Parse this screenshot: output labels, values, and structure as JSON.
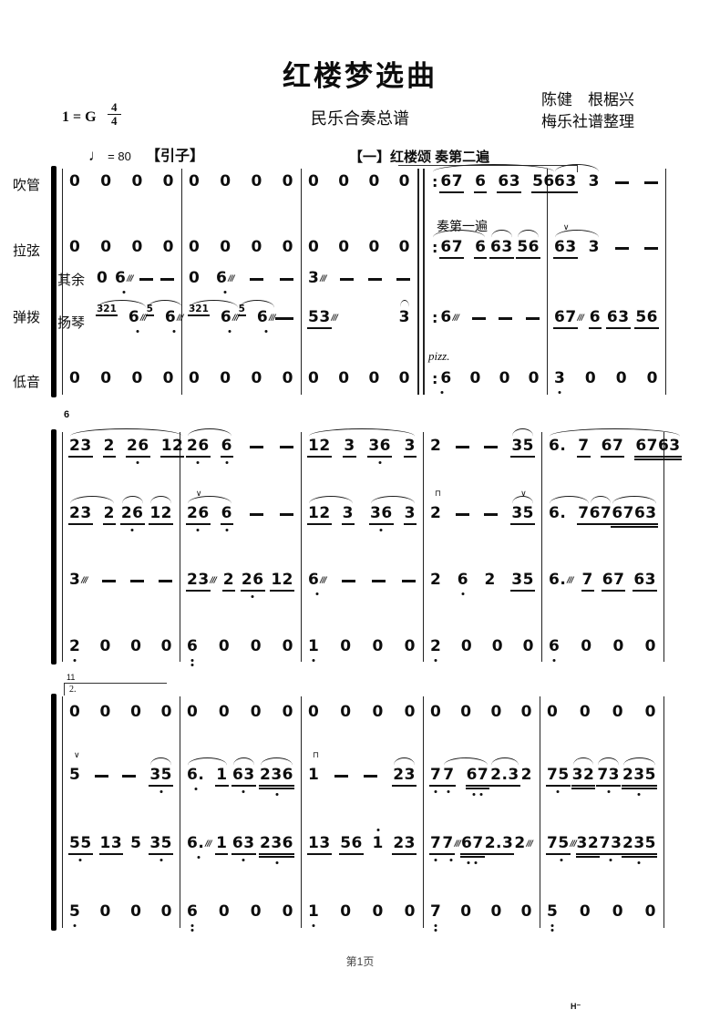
{
  "header": {
    "title": "红楼梦选曲",
    "subtitle": "民乐合奏总谱",
    "composer_line1": "陈健　根椐兴",
    "composer_line2": "梅乐社谱整理",
    "key_signature": "1 = G",
    "time_top": "4",
    "time_bottom": "4",
    "tempo_symbol": "♩",
    "tempo_value": "= 80",
    "intro_label": "【引子】",
    "section_label": "【一】红楼颂 奏第二遍"
  },
  "instruments": [
    "吹管",
    "拉弦",
    "弹拨",
    "低音"
  ],
  "tanbo_sub": [
    "其余",
    "扬琴"
  ],
  "annotations": {
    "first_pass": "奏第一遍",
    "pizz": "pizz.",
    "measure6": "6",
    "measure11": "11",
    "volta2": "2.",
    "page_label": "第1页",
    "corner_mark": "H⁻"
  },
  "systems": [
    {
      "rows": {
        "chuiguan": [
          "0 0 0 0",
          "0 0 0 0",
          "0 0 0 0",
          "(:67_ 6_ 63_ 56_)",
          "(63_ 3) - -"
        ],
        "laxian": [
          "0 0 0 0",
          "0 0 0 0",
          "0 0 0 0",
          "(:67_ 6_) (63_) (56_)",
          "(v^63_ 3) - -"
        ],
        "qiyu": [
          "0 6~, - -",
          "0 6~, - -",
          "3~ - - -",
          "",
          ""
        ],
        "yangqin": [
          "(g:321_ 6~,) (g:5_ 6~,) - -",
          "(g:321_ 6~,) (g:5_ 6~,) - -",
          "53_~ (3)",
          ":6~ - - -",
          "67_~ 6_ 63_ 56_"
        ],
        "diyin": [
          "0 0 0 0",
          "0 0 0 0",
          "0 0 0 0",
          ":6, 0 0 0",
          "3, 0 0 0"
        ]
      }
    },
    {
      "rows": {
        "chuiguan": [
          "(23_ 2_ 26_, 12_)",
          "(26_, 6_,) - -",
          "(12_ 3_ 36_, 3_)",
          "2 - - (35_)",
          "(6. 7_ 67_ 6763__)"
        ],
        "laxian": [
          "(23_ 2_) (26_,) (12_)",
          "(v^26_, 6_,) - -",
          "(12_ 3_) (36_, 3_)",
          "n^2 - - (v^35_)",
          "(6. 7_) (67_) (6763__)"
        ],
        "tanbo": [
          "3~ - - -",
          "23_~ 2_ 26_, 12_",
          "6~, - - -",
          "2 6, 2 35_",
          "6.~ 7_ 67_ 63_"
        ],
        "diyin": [
          "2, 0 0 0",
          "6,, 0 0 0",
          "1, 0 0 0",
          "2, 0 0 0",
          "6, 0 0 0"
        ]
      }
    },
    {
      "rows": {
        "chuiguan": [
          "0 0 0 0",
          "0 0 0 0",
          "0 0 0 0",
          "0 0 0 0",
          "0 0 0 0"
        ],
        "laxian": [
          "v^5 - - (35_,)",
          "(6., 1_) (63_,) (236__,)",
          "n^1 - - (23_)",
          "7_, (7_, 67__;) (2.3_) 2",
          "75_, (32__) (73_,) (235__,)"
        ],
        "tanbo": [
          "55_, 13_ 5 35_,",
          "6.~, 1_ 63_, 236__,",
          "13_ 56_ 1' 23_",
          "7_, 7_,~ 67__; 2.3_ 2~",
          "75_,~ 32__ 73_, 235__,"
        ],
        "diyin": [
          "5, 0 0 0",
          "6,, 0 0 0",
          "1, 0 0 0",
          "7,, 0 0 0",
          "5,, 0 0 0"
        ]
      }
    }
  ]
}
